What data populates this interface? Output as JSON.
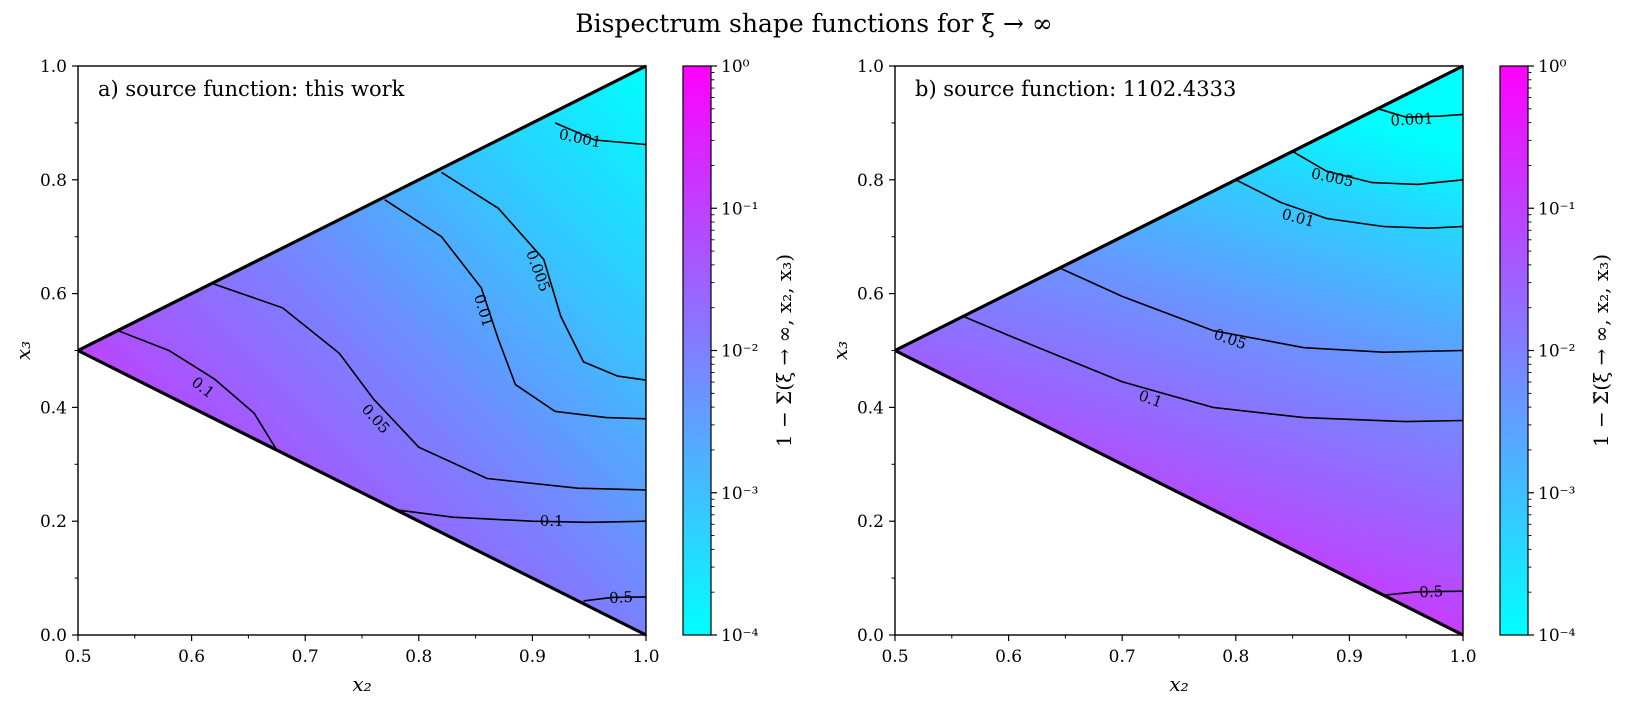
{
  "figure": {
    "title": "Bispectrum shape functions for ξ → ∞"
  },
  "colors": {
    "low": "#00ffff",
    "high": "#ff00ff",
    "line": "#000000"
  },
  "chart_data": [
    {
      "type": "heatmap",
      "panel_title": "a) source function: this work",
      "xlabel": "x₂",
      "ylabel": "x₃",
      "xlim": [
        0.5,
        1.0
      ],
      "ylim": [
        0.0,
        1.0
      ],
      "x_ticks": [
        "0.5",
        "0.6",
        "0.7",
        "0.8",
        "0.9",
        "1.0"
      ],
      "y_ticks": [
        "0.0",
        "0.2",
        "0.4",
        "0.6",
        "0.8",
        "1.0"
      ],
      "domain": "triangle with vertices (0.5, 0.5), (1.0, 1.0), (1.0, 0.0)",
      "colorbar": {
        "label": "1 − Σ(ξ → ∞, x₂, x₃)",
        "scale": "log",
        "range": [
          0.0001,
          1
        ],
        "ticks": [
          "10⁰",
          "10⁻¹",
          "10⁻²",
          "10⁻³",
          "10⁻⁴"
        ]
      },
      "contours": [
        {
          "level": "0.001",
          "points": [
            [
              0.92,
              0.9
            ],
            [
              0.955,
              0.87
            ],
            [
              1.0,
              0.862
            ]
          ],
          "label_at": [
            0.942,
            0.873
          ],
          "label_angle": 12
        },
        {
          "level": "0.005",
          "points": [
            [
              0.82,
              0.813
            ],
            [
              0.87,
              0.75
            ],
            [
              0.91,
              0.66
            ],
            [
              0.925,
              0.56
            ],
            [
              0.945,
              0.48
            ],
            [
              0.975,
              0.455
            ],
            [
              1.0,
              0.448
            ]
          ],
          "label_at": [
            0.905,
            0.64
          ],
          "label_angle": 70
        },
        {
          "level": "0.01",
          "points": [
            [
              0.77,
              0.765
            ],
            [
              0.82,
              0.7
            ],
            [
              0.855,
              0.61
            ],
            [
              0.87,
              0.52
            ],
            [
              0.885,
              0.44
            ],
            [
              0.92,
              0.393
            ],
            [
              0.965,
              0.382
            ],
            [
              1.0,
              0.38
            ]
          ],
          "label_at": [
            0.857,
            0.57
          ],
          "label_angle": 73
        },
        {
          "level": "0.05",
          "points": [
            [
              0.618,
              0.618
            ],
            [
              0.68,
              0.575
            ],
            [
              0.73,
              0.495
            ],
            [
              0.76,
              0.415
            ],
            [
              0.8,
              0.33
            ],
            [
              0.86,
              0.275
            ],
            [
              0.94,
              0.258
            ],
            [
              1.0,
              0.255
            ]
          ],
          "label_at": [
            0.762,
            0.38
          ],
          "label_angle": 48
        },
        {
          "level": "0.1",
          "points": [
            [
              0.535,
              0.535
            ],
            [
              0.58,
              0.5
            ],
            [
              0.62,
              0.45
            ],
            [
              0.655,
              0.39
            ],
            [
              0.675,
              0.325
            ]
          ],
          "label_at": [
            0.61,
            0.435
          ],
          "label_angle": 38
        },
        {
          "level": "0.1",
          "points": [
            [
              0.78,
              0.22
            ],
            [
              0.83,
              0.207
            ],
            [
              0.9,
              0.2
            ],
            [
              0.95,
              0.198
            ],
            [
              1.0,
              0.2
            ]
          ],
          "label_at": [
            0.917,
            0.2
          ],
          "label_angle": 0
        },
        {
          "level": "0.5",
          "points": [
            [
              0.945,
              0.06
            ],
            [
              0.97,
              0.066
            ],
            [
              1.0,
              0.067
            ]
          ],
          "label_at": [
            0.978,
            0.066
          ],
          "label_angle": -3
        }
      ]
    },
    {
      "type": "heatmap",
      "panel_title": "b) source function: 1102.4333",
      "xlabel": "x₂",
      "ylabel": "x₃",
      "xlim": [
        0.5,
        1.0
      ],
      "ylim": [
        0.0,
        1.0
      ],
      "x_ticks": [
        "0.5",
        "0.6",
        "0.7",
        "0.8",
        "0.9",
        "1.0"
      ],
      "y_ticks": [
        "0.0",
        "0.2",
        "0.4",
        "0.6",
        "0.8",
        "1.0"
      ],
      "domain": "triangle with vertices (0.5, 0.5), (1.0, 1.0), (1.0, 0.0)",
      "colorbar": {
        "label": "1 − Σ̃(ξ → ∞, x₂, x₃)",
        "scale": "log",
        "range": [
          0.0001,
          1
        ],
        "ticks": [
          "10⁰",
          "10⁻¹",
          "10⁻²",
          "10⁻³",
          "10⁻⁴"
        ]
      },
      "contours": [
        {
          "level": "0.001",
          "points": [
            [
              0.925,
              0.925
            ],
            [
              0.95,
              0.91
            ],
            [
              0.98,
              0.912
            ],
            [
              1.0,
              0.915
            ]
          ],
          "label_at": [
            0.955,
            0.906
          ],
          "label_angle": -3
        },
        {
          "level": "0.005",
          "points": [
            [
              0.85,
              0.85
            ],
            [
              0.88,
              0.815
            ],
            [
              0.92,
              0.795
            ],
            [
              0.96,
              0.792
            ],
            [
              1.0,
              0.8
            ]
          ],
          "label_at": [
            0.885,
            0.804
          ],
          "label_angle": 12
        },
        {
          "level": "0.01",
          "points": [
            [
              0.8,
              0.8
            ],
            [
              0.84,
              0.76
            ],
            [
              0.88,
              0.732
            ],
            [
              0.93,
              0.718
            ],
            [
              0.97,
              0.715
            ],
            [
              1.0,
              0.718
            ]
          ],
          "label_at": [
            0.855,
            0.733
          ],
          "label_angle": 15
        },
        {
          "level": "0.05",
          "points": [
            [
              0.645,
              0.645
            ],
            [
              0.7,
              0.595
            ],
            [
              0.78,
              0.535
            ],
            [
              0.86,
              0.505
            ],
            [
              0.93,
              0.497
            ],
            [
              1.0,
              0.5
            ]
          ],
          "label_at": [
            0.795,
            0.52
          ],
          "label_angle": 20
        },
        {
          "level": "0.1",
          "points": [
            [
              0.56,
              0.56
            ],
            [
              0.62,
              0.51
            ],
            [
              0.7,
              0.445
            ],
            [
              0.78,
              0.4
            ],
            [
              0.86,
              0.382
            ],
            [
              0.95,
              0.375
            ],
            [
              1.0,
              0.377
            ]
          ],
          "label_at": [
            0.725,
            0.415
          ],
          "label_angle": 20
        },
        {
          "level": "0.5",
          "points": [
            [
              0.93,
              0.07
            ],
            [
              0.96,
              0.076
            ],
            [
              1.0,
              0.077
            ]
          ],
          "label_at": [
            0.972,
            0.076
          ],
          "label_angle": -3
        }
      ]
    }
  ]
}
